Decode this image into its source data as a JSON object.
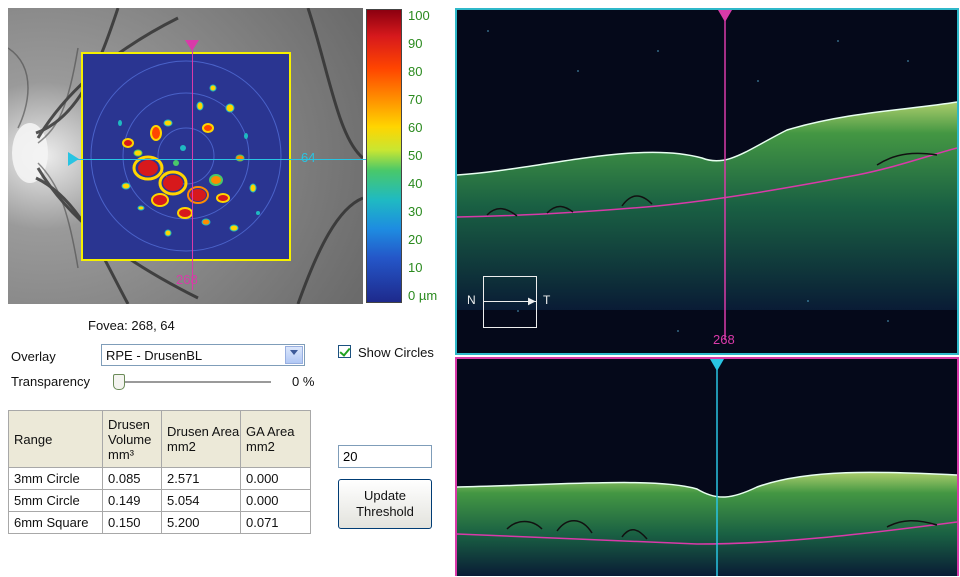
{
  "fundus": {
    "vertical_marker_label": "268",
    "horizontal_marker_label": "64"
  },
  "colorbar": {
    "ticks": [
      "100",
      "90",
      "80",
      "70",
      "60",
      "50",
      "40",
      "30",
      "20",
      "10",
      "0 µm"
    ]
  },
  "scan_top": {
    "orientation_left": "N",
    "orientation_right": "T",
    "marker_label": "268"
  },
  "fovea": {
    "label": "Fovea:",
    "value": "268, 64"
  },
  "overlay": {
    "label": "Overlay",
    "selected": "RPE - DrusenBL"
  },
  "show_circles": {
    "label": "Show Circles",
    "checked": true
  },
  "transparency": {
    "label": "Transparency",
    "value": "0 %",
    "percent": 0
  },
  "table": {
    "headers": [
      "Range",
      "Drusen Volume mm³",
      "Drusen Area mm2",
      "GA Area mm2"
    ],
    "rows": [
      [
        "3mm Circle",
        "0.085",
        "2.571",
        "0.000"
      ],
      [
        "5mm Circle",
        "0.149",
        "5.054",
        "0.000"
      ],
      [
        "6mm Square",
        "0.150",
        "5.200",
        "0.071"
      ]
    ]
  },
  "threshold": {
    "value": "20",
    "button_label": "Update Threshold"
  },
  "colors": {
    "vertical_marker": "#d93aa9",
    "horizontal_marker": "#29c4e2",
    "scan_border_top": "#2fb8c9",
    "scan_border_bottom": "#d93aa9"
  }
}
